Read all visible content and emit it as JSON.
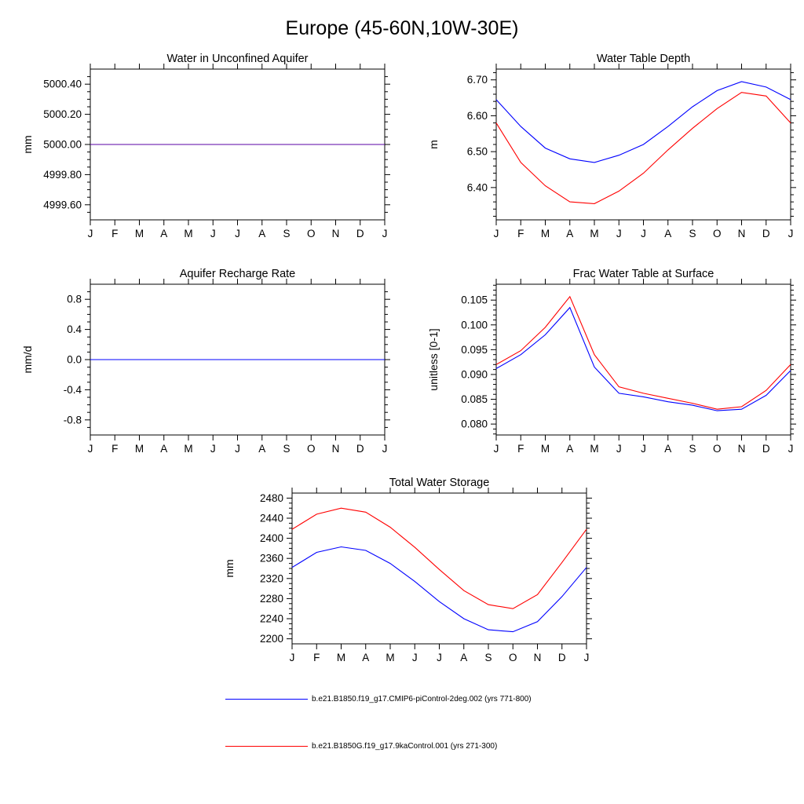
{
  "page": {
    "title": "Europe (45-60N,10W-30E)"
  },
  "legend": [
    {
      "label": "b.e21.B1850.f19_g17.CMIP6-piControl-2deg.002 (yrs 771-800)",
      "color": "#0000ff"
    },
    {
      "label": "b.e21.B1850G.f19_g17.9kaControl.001 (yrs 271-300)",
      "color": "#ff0000"
    }
  ],
  "chart_data": [
    {
      "id": "water-in-unconfined-aquifer",
      "type": "line",
      "title": "Water in Unconfined Aquifer",
      "xlabel": "",
      "ylabel": "mm",
      "x": [
        "J",
        "F",
        "M",
        "A",
        "M",
        "J",
        "J",
        "A",
        "S",
        "O",
        "N",
        "D",
        "J"
      ],
      "ylim": [
        4999.5,
        5000.5
      ],
      "yticks": [
        4999.6,
        4999.8,
        5000.0,
        5000.2,
        5000.4
      ],
      "ytick_labels": [
        "4999.60",
        "4999.80",
        "5000.00",
        "5000.20",
        "5000.40"
      ],
      "y_minor_step": 0.05,
      "grid": false,
      "series": [
        {
          "name": "9kaControl",
          "color": "#ff0000",
          "values": [
            5000.0,
            5000.0,
            5000.0,
            5000.0,
            5000.0,
            5000.0,
            5000.0,
            5000.0,
            5000.0,
            5000.0,
            5000.0,
            5000.0,
            5000.0
          ]
        },
        {
          "name": "piControl-2deg",
          "color": "#0000ff",
          "opacity": 0.65,
          "values": [
            5000.0,
            5000.0,
            5000.0,
            5000.0,
            5000.0,
            5000.0,
            5000.0,
            5000.0,
            5000.0,
            5000.0,
            5000.0,
            5000.0,
            5000.0
          ]
        }
      ]
    },
    {
      "id": "water-table-depth",
      "type": "line",
      "title": "Water Table Depth",
      "xlabel": "",
      "ylabel": "m",
      "x": [
        "J",
        "F",
        "M",
        "A",
        "M",
        "J",
        "J",
        "A",
        "S",
        "O",
        "N",
        "D",
        "J"
      ],
      "ylim": [
        6.31,
        6.73
      ],
      "yticks": [
        6.4,
        6.5,
        6.6,
        6.7
      ],
      "ytick_labels": [
        "6.40",
        "6.50",
        "6.60",
        "6.70"
      ],
      "y_minor_step": 0.02,
      "grid": false,
      "series": [
        {
          "name": "piControl-2deg",
          "color": "#0000ff",
          "values": [
            6.645,
            6.57,
            6.51,
            6.48,
            6.47,
            6.49,
            6.52,
            6.57,
            6.625,
            6.67,
            6.695,
            6.68,
            6.645
          ]
        },
        {
          "name": "9kaControl",
          "color": "#ff0000",
          "values": [
            6.58,
            6.47,
            6.405,
            6.36,
            6.355,
            6.39,
            6.44,
            6.505,
            6.565,
            6.62,
            6.665,
            6.655,
            6.58
          ]
        }
      ]
    },
    {
      "id": "aquifer-recharge-rate",
      "type": "line",
      "title": "Aquifer Recharge Rate",
      "xlabel": "",
      "ylabel": "mm/d",
      "x": [
        "J",
        "F",
        "M",
        "A",
        "M",
        "J",
        "J",
        "A",
        "S",
        "O",
        "N",
        "D",
        "J"
      ],
      "ylim": [
        -1.0,
        1.0
      ],
      "yticks": [
        -0.8,
        -0.4,
        0.0,
        0.4,
        0.8
      ],
      "ytick_labels": [
        "-0.8",
        "-0.4",
        "0.0",
        "0.4",
        "0.8"
      ],
      "y_minor_step": 0.1,
      "grid": false,
      "series": [
        {
          "name": "9kaControl",
          "color": "#ff0000",
          "values": [
            0.0,
            0.0,
            0.0,
            0.0,
            0.0,
            0.0,
            0.0,
            0.0,
            0.0,
            0.0,
            0.0,
            0.0,
            0.0
          ]
        },
        {
          "name": "piControl-2deg",
          "color": "#0000ff",
          "values": [
            0.0,
            0.0,
            0.0,
            0.0,
            0.0,
            0.0,
            0.0,
            0.0,
            0.0,
            0.0,
            0.0,
            0.0,
            0.0
          ]
        }
      ]
    },
    {
      "id": "frac-water-table-at-surface",
      "type": "line",
      "title": "Frac Water Table at Surface",
      "xlabel": "",
      "ylabel": "unitless [0-1]",
      "x": [
        "J",
        "F",
        "M",
        "A",
        "M",
        "J",
        "J",
        "A",
        "S",
        "O",
        "N",
        "D",
        "J"
      ],
      "ylim": [
        0.0778,
        0.1082
      ],
      "yticks": [
        0.08,
        0.085,
        0.09,
        0.095,
        0.1,
        0.105
      ],
      "ytick_labels": [
        "0.080",
        "0.085",
        "0.090",
        "0.095",
        "0.100",
        "0.105"
      ],
      "y_minor_step": 0.001,
      "grid": false,
      "series": [
        {
          "name": "piControl-2deg",
          "color": "#0000ff",
          "values": [
            0.0912,
            0.094,
            0.098,
            0.1035,
            0.0915,
            0.0862,
            0.0855,
            0.0845,
            0.0838,
            0.0827,
            0.083,
            0.0858,
            0.0908
          ]
        },
        {
          "name": "9kaControl",
          "color": "#ff0000",
          "values": [
            0.092,
            0.0948,
            0.0995,
            0.1057,
            0.094,
            0.0875,
            0.0862,
            0.0852,
            0.0842,
            0.083,
            0.0835,
            0.0868,
            0.092
          ]
        }
      ]
    },
    {
      "id": "total-water-storage",
      "type": "line",
      "title": "Total Water Storage",
      "xlabel": "",
      "ylabel": "mm",
      "x": [
        "J",
        "F",
        "M",
        "A",
        "M",
        "J",
        "J",
        "A",
        "S",
        "O",
        "N",
        "D",
        "J"
      ],
      "ylim": [
        2190,
        2490
      ],
      "yticks": [
        2200,
        2240,
        2280,
        2320,
        2360,
        2400,
        2440,
        2480
      ],
      "ytick_labels": [
        "2200",
        "2240",
        "2280",
        "2320",
        "2360",
        "2400",
        "2440",
        "2480"
      ],
      "y_minor_step": 10,
      "grid": false,
      "series": [
        {
          "name": "piControl-2deg",
          "color": "#0000ff",
          "values": [
            2342,
            2372,
            2383,
            2376,
            2350,
            2314,
            2274,
            2240,
            2218,
            2214,
            2234,
            2284,
            2342
          ]
        },
        {
          "name": "9kaControl",
          "color": "#ff0000",
          "values": [
            2418,
            2448,
            2460,
            2452,
            2422,
            2382,
            2338,
            2296,
            2268,
            2260,
            2288,
            2352,
            2418
          ]
        }
      ]
    }
  ]
}
